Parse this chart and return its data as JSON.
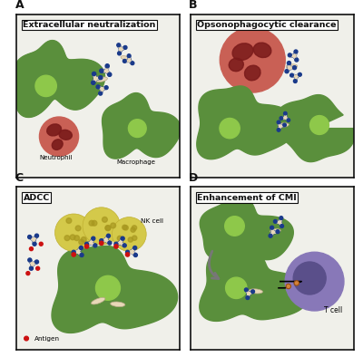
{
  "panels": [
    "A",
    "B",
    "C",
    "D"
  ],
  "panel_titles": [
    "Extracellular neutralization",
    "Opsonophagocytic clearance",
    "ADCC",
    "Enhancement of CMI"
  ],
  "colors": {
    "green_cell": "#5a8f3c",
    "green_nucleus": "#8ec84a",
    "red_cell": "#c96055",
    "red_dark": "#7a1a1a",
    "neutrophil_bg": "#c96055",
    "yellow_cell": "#d4c94a",
    "yellow_spot": "#a89820",
    "purple_cell": "#8878b8",
    "purple_dark": "#5a4f8a",
    "antibody_blue": "#1a3a8a",
    "antibody_body": "#e8d8b8",
    "orange_linker": "#d4823a",
    "background": "#f0f0ea",
    "border": "#111111",
    "text_dark": "#111111",
    "arrow_gray": "#777777",
    "antigen_red": "#cc1111"
  },
  "figsize": [
    4.0,
    3.94
  ],
  "dpi": 100
}
